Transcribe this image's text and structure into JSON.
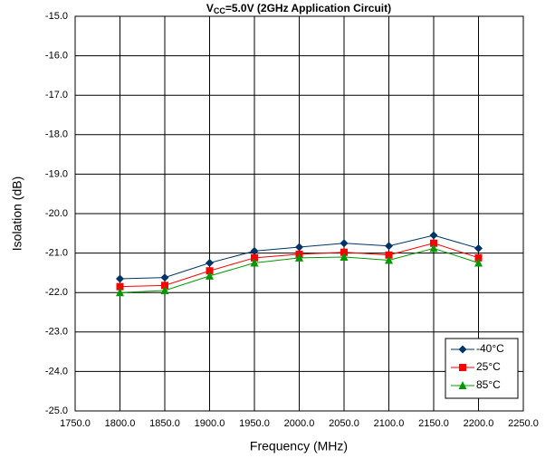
{
  "chart_data": {
    "type": "line",
    "title": [
      "V",
      "CC",
      "=5.0V (2GHz Application Circuit)"
    ],
    "xlabel": "Frequency (MHz)",
    "ylabel": "Isolation (dB)",
    "x": [
      1800,
      1850,
      1900,
      1950,
      2000,
      2050,
      2100,
      2150,
      2200
    ],
    "series": [
      {
        "name": "-40°C",
        "color": "#003366",
        "marker": "diamond",
        "values": [
          -21.65,
          -21.62,
          -21.25,
          -20.95,
          -20.85,
          -20.75,
          -20.82,
          -20.55,
          -20.88
        ]
      },
      {
        "name": "25°C",
        "color": "#ff0000",
        "marker": "square",
        "values": [
          -21.85,
          -21.82,
          -21.45,
          -21.12,
          -21.03,
          -20.98,
          -21.05,
          -20.75,
          -21.12
        ]
      },
      {
        "name": "85°C",
        "color": "#009900",
        "marker": "triangle",
        "values": [
          -22.0,
          -21.95,
          -21.58,
          -21.25,
          -21.12,
          -21.1,
          -21.18,
          -20.88,
          -21.25
        ]
      }
    ],
    "xlim": [
      1750,
      2250
    ],
    "xticks": [
      {
        "value": 1750,
        "label": "1750.0"
      },
      {
        "value": 1800,
        "label": "1800.0"
      },
      {
        "value": 1850,
        "label": "1850.0"
      },
      {
        "value": 1900,
        "label": "1900.0"
      },
      {
        "value": 1950,
        "label": "1950.0"
      },
      {
        "value": 2000,
        "label": "2000.0"
      },
      {
        "value": 2050,
        "label": "2050.0"
      },
      {
        "value": 2100,
        "label": "2100.0"
      },
      {
        "value": 2150,
        "label": "2150.0"
      },
      {
        "value": 2200,
        "label": "2200.0"
      },
      {
        "value": 2250,
        "label": "2250.0"
      }
    ],
    "ylim": [
      -25,
      -15
    ],
    "yticks": [
      {
        "value": -25,
        "label": "-25.0"
      },
      {
        "value": -24,
        "label": "-24.0"
      },
      {
        "value": -23,
        "label": "-23.0"
      },
      {
        "value": -22,
        "label": "-22.0"
      },
      {
        "value": -21,
        "label": "-21.0"
      },
      {
        "value": -20,
        "label": "-20.0"
      },
      {
        "value": -19,
        "label": "-19.0"
      },
      {
        "value": -18,
        "label": "-18.0"
      },
      {
        "value": -17,
        "label": "-17.0"
      },
      {
        "value": -16,
        "label": "-16.0"
      },
      {
        "value": -15,
        "label": "-15.0"
      }
    ],
    "grid": true,
    "legend": "lower right"
  }
}
